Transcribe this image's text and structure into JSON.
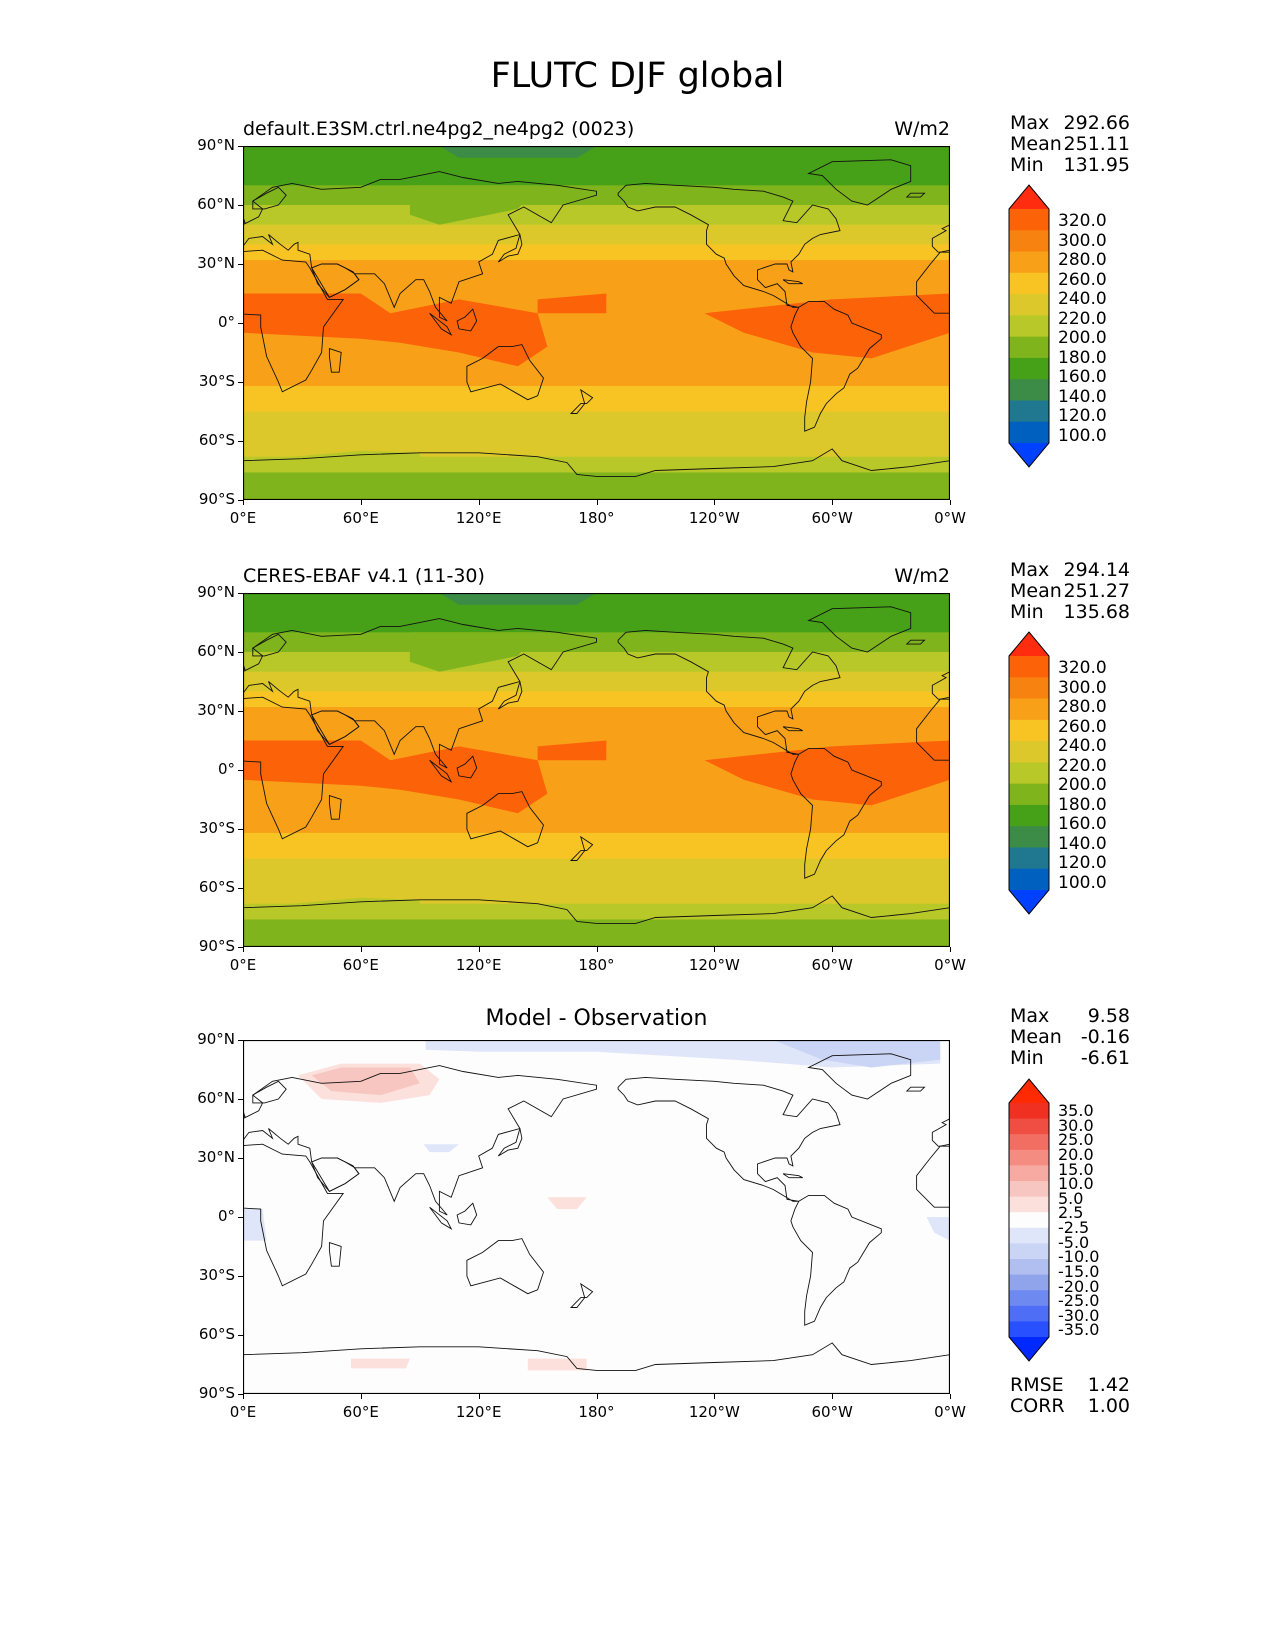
{
  "title": "FLUTC DJF global",
  "panels": [
    {
      "id": "model",
      "left_title": "default.E3SM.ctrl.ne4pg2_ne4pg2 (0023)",
      "center_title": "",
      "units": "W/m2",
      "stats": [
        {
          "label": "Max",
          "value": "292.66"
        },
        {
          "label": "Mean",
          "value": "251.11"
        },
        {
          "label": "Min",
          "value": "131.95"
        }
      ],
      "colorbar_labels": [
        "320.0",
        "300.0",
        "280.0",
        "260.0",
        "240.0",
        "220.0",
        "200.0",
        "180.0",
        "160.0",
        "140.0",
        "120.0",
        "100.0"
      ]
    },
    {
      "id": "obs",
      "left_title": "CERES-EBAF v4.1 (11-30)",
      "center_title": "",
      "units": "W/m2",
      "stats": [
        {
          "label": "Max",
          "value": "294.14"
        },
        {
          "label": "Mean",
          "value": "251.27"
        },
        {
          "label": "Min",
          "value": "135.68"
        }
      ],
      "colorbar_labels": [
        "320.0",
        "300.0",
        "280.0",
        "260.0",
        "240.0",
        "220.0",
        "200.0",
        "180.0",
        "160.0",
        "140.0",
        "120.0",
        "100.0"
      ]
    },
    {
      "id": "diff",
      "left_title": "",
      "center_title": "Model - Observation",
      "units": "",
      "stats": [
        {
          "label": "Max",
          "value": "9.58"
        },
        {
          "label": "Mean",
          "value": "-0.16"
        },
        {
          "label": "Min",
          "value": "-6.61"
        }
      ],
      "colorbar_labels": [
        "35.0",
        "30.0",
        "25.0",
        "20.0",
        "15.0",
        "10.0",
        "5.0",
        "2.5",
        "-2.5",
        "-5.0",
        "-10.0",
        "-15.0",
        "-20.0",
        "-25.0",
        "-30.0",
        "-35.0"
      ],
      "extra_stats": [
        {
          "label": "RMSE",
          "value": "1.42"
        },
        {
          "label": "CORR",
          "value": "1.00"
        }
      ]
    }
  ],
  "lat_ticks": [
    "90°N",
    "60°N",
    "30°N",
    "0°",
    "30°S",
    "60°S",
    "90°S"
  ],
  "lon_ticks": [
    "0°E",
    "60°E",
    "120°E",
    "180°",
    "120°W",
    "60°W",
    "0°W"
  ],
  "colors": {
    "field_scale": [
      "#0040ff",
      "#0060c0",
      "#207890",
      "#3c8c48",
      "#46a018",
      "#80b41c",
      "#b8c828",
      "#dcc82a",
      "#f8c424",
      "#f8a018",
      "#f88210",
      "#fc6208",
      "#ff2c10"
    ],
    "diff_scale": [
      "#0028ff",
      "#2850ff",
      "#4d6ef5",
      "#6e8af0",
      "#90a4ec",
      "#b0bef0",
      "#cad4f5",
      "#e0e6fa",
      "#fdfdfd",
      "#fbe0dc",
      "#f8c6c0",
      "#f6aaa2",
      "#f48c82",
      "#f26e62",
      "#f04e42",
      "#f03020",
      "#ff2a00"
    ],
    "coastline": "#111111"
  }
}
